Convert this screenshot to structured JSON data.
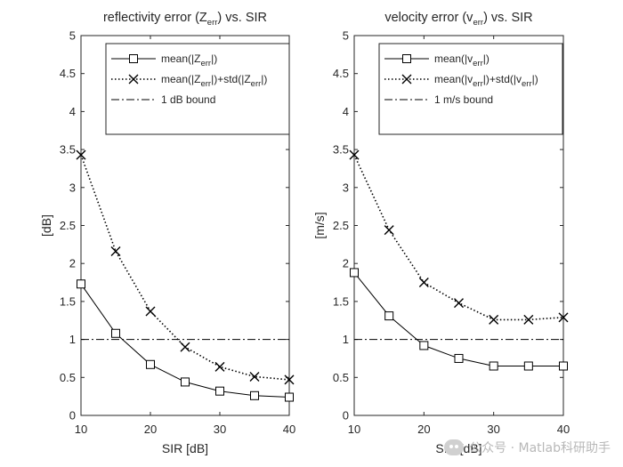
{
  "chart_data": [
    {
      "type": "line",
      "title_main": "reflectivity error (Z",
      "title_sub": "err",
      "title_tail": ") vs. SIR",
      "xlabel": "SIR [dB]",
      "ylabel": "[dB]",
      "xlim": [
        10,
        40
      ],
      "ylim": [
        0,
        5
      ],
      "xticks": [
        "10",
        "20",
        "30",
        "40"
      ],
      "yticks": [
        "0",
        "0.5",
        "1",
        "1.5",
        "2",
        "2.5",
        "3",
        "3.5",
        "4",
        "4.5",
        "5"
      ],
      "grid": false,
      "legend_position": "top-right",
      "x": [
        10,
        15,
        20,
        25,
        30,
        35,
        40
      ],
      "series": [
        {
          "key": "mean",
          "legend_parts": [
            "mean(|Z",
            "err",
            "|)"
          ],
          "values": [
            1.73,
            1.08,
            0.67,
            0.44,
            0.32,
            0.26,
            0.24
          ],
          "marker": "square",
          "line": "solid"
        },
        {
          "key": "meanstd",
          "legend_parts": [
            "mean(|Z",
            "err",
            "|)+std(|Z",
            "err",
            "|)"
          ],
          "values": [
            3.43,
            2.16,
            1.37,
            0.9,
            0.64,
            0.51,
            0.47
          ],
          "marker": "x",
          "line": "dotted"
        },
        {
          "key": "bound",
          "legend_parts": [
            "1 dB bound"
          ],
          "values": [
            1,
            1,
            1,
            1,
            1,
            1,
            1
          ],
          "marker": "none",
          "line": "dashdot"
        }
      ]
    },
    {
      "type": "line",
      "title_main": "velocity error (v",
      "title_sub": "err",
      "title_tail": ") vs. SIR",
      "xlabel": "SIR [dB]",
      "ylabel": "[m/s]",
      "xlim": [
        10,
        40
      ],
      "ylim": [
        0,
        5
      ],
      "xticks": [
        "10",
        "20",
        "30",
        "40"
      ],
      "yticks": [
        "0",
        "0.5",
        "1",
        "1.5",
        "2",
        "2.5",
        "3",
        "3.5",
        "4",
        "4.5",
        "5"
      ],
      "grid": false,
      "legend_position": "top-right",
      "x": [
        10,
        15,
        20,
        25,
        30,
        35,
        40
      ],
      "series": [
        {
          "key": "mean",
          "legend_parts": [
            "mean(|v",
            "err",
            "|)"
          ],
          "values": [
            1.88,
            1.31,
            0.92,
            0.75,
            0.65,
            0.65,
            0.65
          ],
          "marker": "square",
          "line": "solid"
        },
        {
          "key": "meanstd",
          "legend_parts": [
            "mean(|v",
            "err",
            "|)+std(|v",
            "err",
            "|)"
          ],
          "values": [
            3.43,
            2.44,
            1.75,
            1.48,
            1.26,
            1.26,
            1.29
          ],
          "marker": "x",
          "line": "dotted"
        },
        {
          "key": "bound",
          "legend_parts": [
            "1 m/s bound"
          ],
          "values": [
            1,
            1,
            1,
            1,
            1,
            1,
            1
          ],
          "marker": "none",
          "line": "dashdot"
        }
      ]
    }
  ],
  "watermark": {
    "text": "公众号 · Matlab科研助手"
  }
}
